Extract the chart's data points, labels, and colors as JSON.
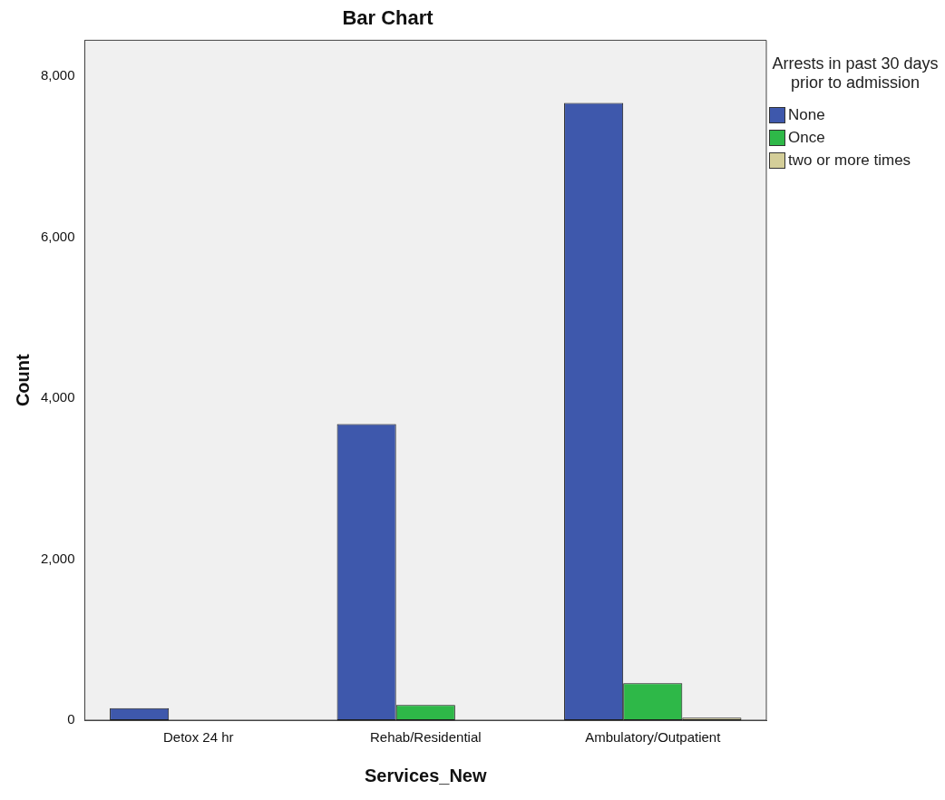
{
  "chart_data": {
    "type": "bar",
    "title": "Bar Chart",
    "xlabel": "Services_New",
    "ylabel": "Count",
    "legend_title": "Arrests in past 30 days prior to admission",
    "legend": "right",
    "grid": false,
    "categories": [
      "Detox 24 hr",
      "Rehab/Residential",
      "Ambulatory/Outpatient"
    ],
    "series": [
      {
        "name": "None",
        "color": "#3e58ac",
        "values": [
          150,
          3680,
          7670
        ]
      },
      {
        "name": "Once",
        "color": "#2eb848",
        "values": [
          null,
          190,
          460
        ]
      },
      {
        "name": "two or more times",
        "color": "#d4ce99",
        "values": [
          null,
          null,
          30
        ]
      }
    ],
    "ylim": [
      0,
      8450
    ],
    "yticks": [
      {
        "value": 0,
        "label": "0"
      },
      {
        "value": 2000,
        "label": "2,000"
      },
      {
        "value": 4000,
        "label": "4,000"
      },
      {
        "value": 6000,
        "label": "6,000"
      },
      {
        "value": 8000,
        "label": "8,000"
      }
    ]
  }
}
